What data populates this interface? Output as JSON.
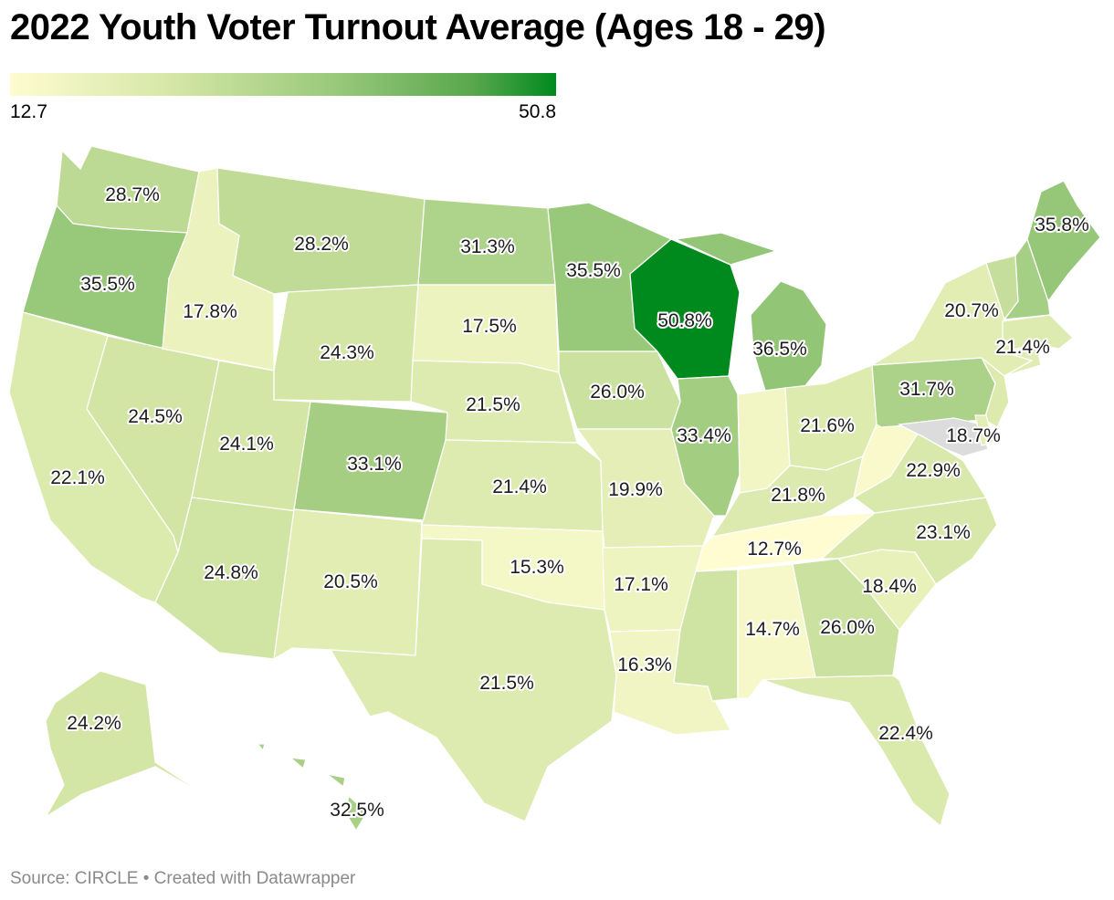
{
  "title": "2022 Youth Voter Turnout Average (Ages 18 - 29)",
  "legend": {
    "min": "12.7",
    "max": "50.8",
    "min_color": "#fefcd0",
    "max_color": "#008a1d"
  },
  "footer": "Source: CIRCLE • Created with Datawrapper",
  "colors": {
    "no_data": "#dcdcdc",
    "border": "#ffffff"
  },
  "states": {
    "WA": {
      "name": "Washington",
      "label": "28.7%",
      "value": 28.7
    },
    "OR": {
      "name": "Oregon",
      "label": "35.5%",
      "value": 35.5
    },
    "CA": {
      "name": "California",
      "label": "22.1%",
      "value": 22.1
    },
    "NV": {
      "name": "Nevada",
      "label": "24.5%",
      "value": 24.5
    },
    "ID": {
      "name": "Idaho",
      "label": "17.8%",
      "value": 17.8
    },
    "MT": {
      "name": "Montana",
      "label": "28.2%",
      "value": 28.2
    },
    "WY": {
      "name": "Wyoming",
      "label": "24.3%",
      "value": 24.3
    },
    "UT": {
      "name": "Utah",
      "label": "24.1%",
      "value": 24.1
    },
    "AZ": {
      "name": "Arizona",
      "label": "24.8%",
      "value": 24.8
    },
    "CO": {
      "name": "Colorado",
      "label": "33.1%",
      "value": 33.1
    },
    "NM": {
      "name": "New Mexico",
      "label": "20.5%",
      "value": 20.5
    },
    "ND": {
      "name": "North Dakota",
      "label": "31.3%",
      "value": 31.3
    },
    "SD": {
      "name": "South Dakota",
      "label": "17.5%",
      "value": 17.5
    },
    "NE": {
      "name": "Nebraska",
      "label": "21.5%",
      "value": 21.5
    },
    "KS": {
      "name": "Kansas",
      "label": "21.4%",
      "value": 21.4
    },
    "OK": {
      "name": "Oklahoma",
      "label": "15.3%",
      "value": 15.3
    },
    "TX": {
      "name": "Texas",
      "label": "21.5%",
      "value": 21.5
    },
    "MN": {
      "name": "Minnesota",
      "label": "35.5%",
      "value": 35.5
    },
    "IA": {
      "name": "Iowa",
      "label": "26.0%",
      "value": 26.0
    },
    "MO": {
      "name": "Missouri",
      "label": "19.9%",
      "value": 19.9
    },
    "AR": {
      "name": "Arkansas",
      "label": "17.1%",
      "value": 17.1
    },
    "LA": {
      "name": "Louisiana",
      "label": "16.3%",
      "value": 16.3
    },
    "WI": {
      "name": "Wisconsin",
      "label": "50.8%",
      "value": 50.8
    },
    "IL": {
      "name": "Illinois",
      "label": "33.4%",
      "value": 33.4
    },
    "MI": {
      "name": "Michigan",
      "label": "36.5%",
      "value": 36.5
    },
    "IN": {
      "name": "Indiana",
      "label": "",
      "value": 15.9
    },
    "OH": {
      "name": "Ohio",
      "label": "21.6%",
      "value": 21.6
    },
    "KY": {
      "name": "Kentucky",
      "label": "21.8%",
      "value": 21.8
    },
    "TN": {
      "name": "Tennessee",
      "label": "12.7%",
      "value": 12.7
    },
    "MS": {
      "name": "Mississippi",
      "label": "",
      "value": 25.0
    },
    "AL": {
      "name": "Alabama",
      "label": "14.7%",
      "value": 14.7
    },
    "GA": {
      "name": "Georgia",
      "label": "26.0%",
      "value": 26.0
    },
    "FL": {
      "name": "Florida",
      "label": "22.4%",
      "value": 22.4
    },
    "SC": {
      "name": "South Carolina",
      "label": "18.4%",
      "value": 18.4
    },
    "NC": {
      "name": "North Carolina",
      "label": "23.1%",
      "value": 23.1
    },
    "VA": {
      "name": "Virginia",
      "label": "22.9%",
      "value": 22.9
    },
    "WV": {
      "name": "West Virginia",
      "label": "",
      "value": 14.0
    },
    "PA": {
      "name": "Pennsylvania",
      "label": "31.7%",
      "value": 31.7
    },
    "NY": {
      "name": "New York",
      "label": "20.7%",
      "value": 20.7
    },
    "NJ": {
      "name": "New Jersey",
      "label": "",
      "value": 22.0
    },
    "MD": {
      "name": "Maryland",
      "label": "18.7%",
      "value": null
    },
    "DE": {
      "name": "Delaware",
      "label": "",
      "value": 20.0
    },
    "CT": {
      "name": "Connecticut",
      "label": "",
      "value": 21.0
    },
    "MA": {
      "name": "Massachusetts",
      "label": "21.4%",
      "value": 21.4
    },
    "VT": {
      "name": "Vermont",
      "label": "",
      "value": 27.0
    },
    "NH": {
      "name": "New Hampshire",
      "label": "",
      "value": 33.0
    },
    "ME": {
      "name": "Maine",
      "label": "35.8%",
      "value": 35.8
    },
    "AK": {
      "name": "Alaska",
      "label": "24.2%",
      "value": 24.2
    },
    "HI": {
      "name": "Hawaii",
      "label": "32.5%",
      "value": 32.5
    }
  }
}
